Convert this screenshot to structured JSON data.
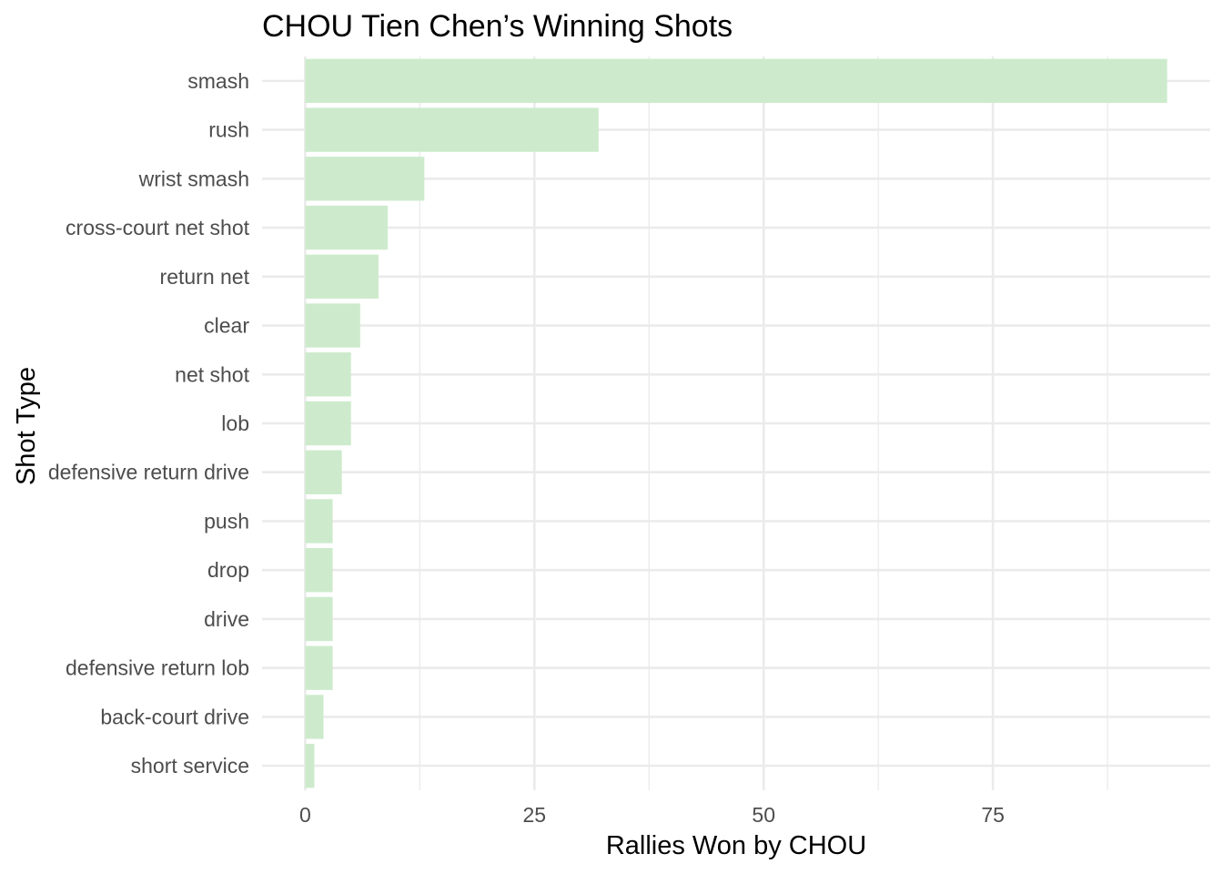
{
  "chart_data": {
    "type": "bar",
    "orientation": "horizontal",
    "title": "CHOU Tien Chen’s Winning Shots",
    "xlabel": "Rallies Won by CHOU",
    "ylabel": "Shot Type",
    "categories": [
      "smash",
      "rush",
      "wrist smash",
      "cross-court net shot",
      "return net",
      "clear",
      "net shot",
      "lob",
      "defensive return drive",
      "push",
      "drop",
      "drive",
      "defensive return lob",
      "back-court drive",
      "short service"
    ],
    "values": [
      94,
      32,
      13,
      9,
      8,
      6,
      5,
      5,
      4,
      3,
      3,
      3,
      3,
      2,
      1
    ],
    "xlim": [
      -4.7,
      98.7
    ],
    "xticks": [
      0,
      25,
      50,
      75
    ],
    "xtick_labels": [
      "0",
      "25",
      "50",
      "75"
    ],
    "minor_xticks": [
      12.5,
      37.5,
      62.5,
      87.5
    ],
    "grid": true,
    "bar_color": "#cdebcc",
    "theme": "minimal"
  }
}
